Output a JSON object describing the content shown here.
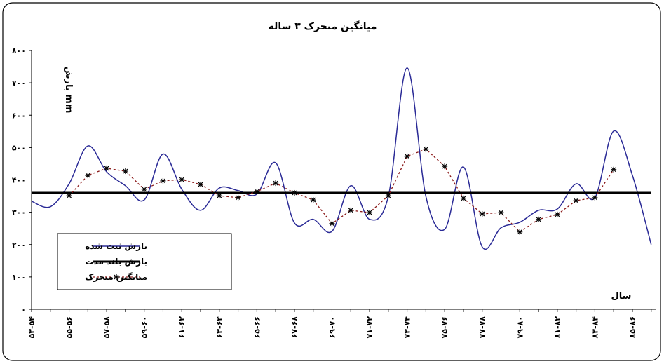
{
  "chart_data": {
    "type": "line",
    "title": "میانگین متحرک ۳ ساله",
    "ylabel": "بارش mm",
    "xlabel": "سال",
    "categories": [
      "۵۳-۵۴",
      null,
      "۵۵-۵۶",
      null,
      "۵۷-۵۸",
      null,
      "۵۹-۶۰",
      null,
      "۶۱-۶۲",
      null,
      "۶۳-۶۴",
      null,
      "۶۵-۶۶",
      null,
      "۶۷-۶۸",
      null,
      "۶۹-۷۰",
      null,
      "۷۱-۷۲",
      null,
      "۷۳-۷۴",
      null,
      "۷۵-۷۶",
      null,
      "۷۷-۷۸",
      null,
      "۷۹-۸۰",
      null,
      "۸۱-۸۲",
      null,
      "۸۳-۸۴",
      null,
      "۸۵-۸۶",
      null
    ],
    "series": [
      {
        "name": "بارش ثبت شده",
        "color": "#2a2a96",
        "style": "solid",
        "smooth": true,
        "values": [
          334,
          317,
          388,
          505,
          425,
          382,
          338,
          480,
          371,
          306,
          375,
          367,
          356,
          453,
          267,
          278,
          241,
          382,
          278,
          349,
          746,
          349,
          247,
          440,
          193,
          252,
          269,
          306,
          310,
          388,
          345,
          551,
          414,
          200
        ]
      },
      {
        "name": "بارش بلند مدت",
        "color": "#000000",
        "style": "bold",
        "values": [
          360,
          360,
          360,
          360,
          360,
          360,
          360,
          360,
          360,
          360,
          360,
          360,
          360,
          360,
          360,
          360,
          360,
          360,
          360,
          360,
          360,
          360,
          360,
          360,
          360,
          360,
          360,
          360,
          360,
          360,
          360,
          360,
          360,
          360
        ]
      },
      {
        "name": "میانگین متحرک",
        "color": "#8b1a1a",
        "style": "dashed",
        "marker": "asterisk",
        "values": [
          null,
          null,
          351,
          414,
          436,
          427,
          371,
          397,
          401,
          386,
          351,
          345,
          364,
          390,
          360,
          338,
          265,
          306,
          299,
          351,
          473,
          495,
          442,
          343,
          295,
          299,
          239,
          278,
          293,
          336,
          345,
          432,
          null,
          null
        ]
      }
    ],
    "ylim": [
      0,
      800
    ],
    "yticks": [
      {
        "value": 0,
        "label": "۰"
      },
      {
        "value": 100,
        "label": "۱۰۰"
      },
      {
        "value": 200,
        "label": "۲۰۰"
      },
      {
        "value": 300,
        "label": "۳۰۰"
      },
      {
        "value": 400,
        "label": "۴۰۰"
      },
      {
        "value": 500,
        "label": "۵۰۰"
      },
      {
        "value": 600,
        "label": "۶۰۰"
      },
      {
        "value": 700,
        "label": "۷۰۰"
      },
      {
        "value": 800,
        "label": "۸۰۰"
      }
    ],
    "grid": false,
    "legend": "lower left"
  }
}
